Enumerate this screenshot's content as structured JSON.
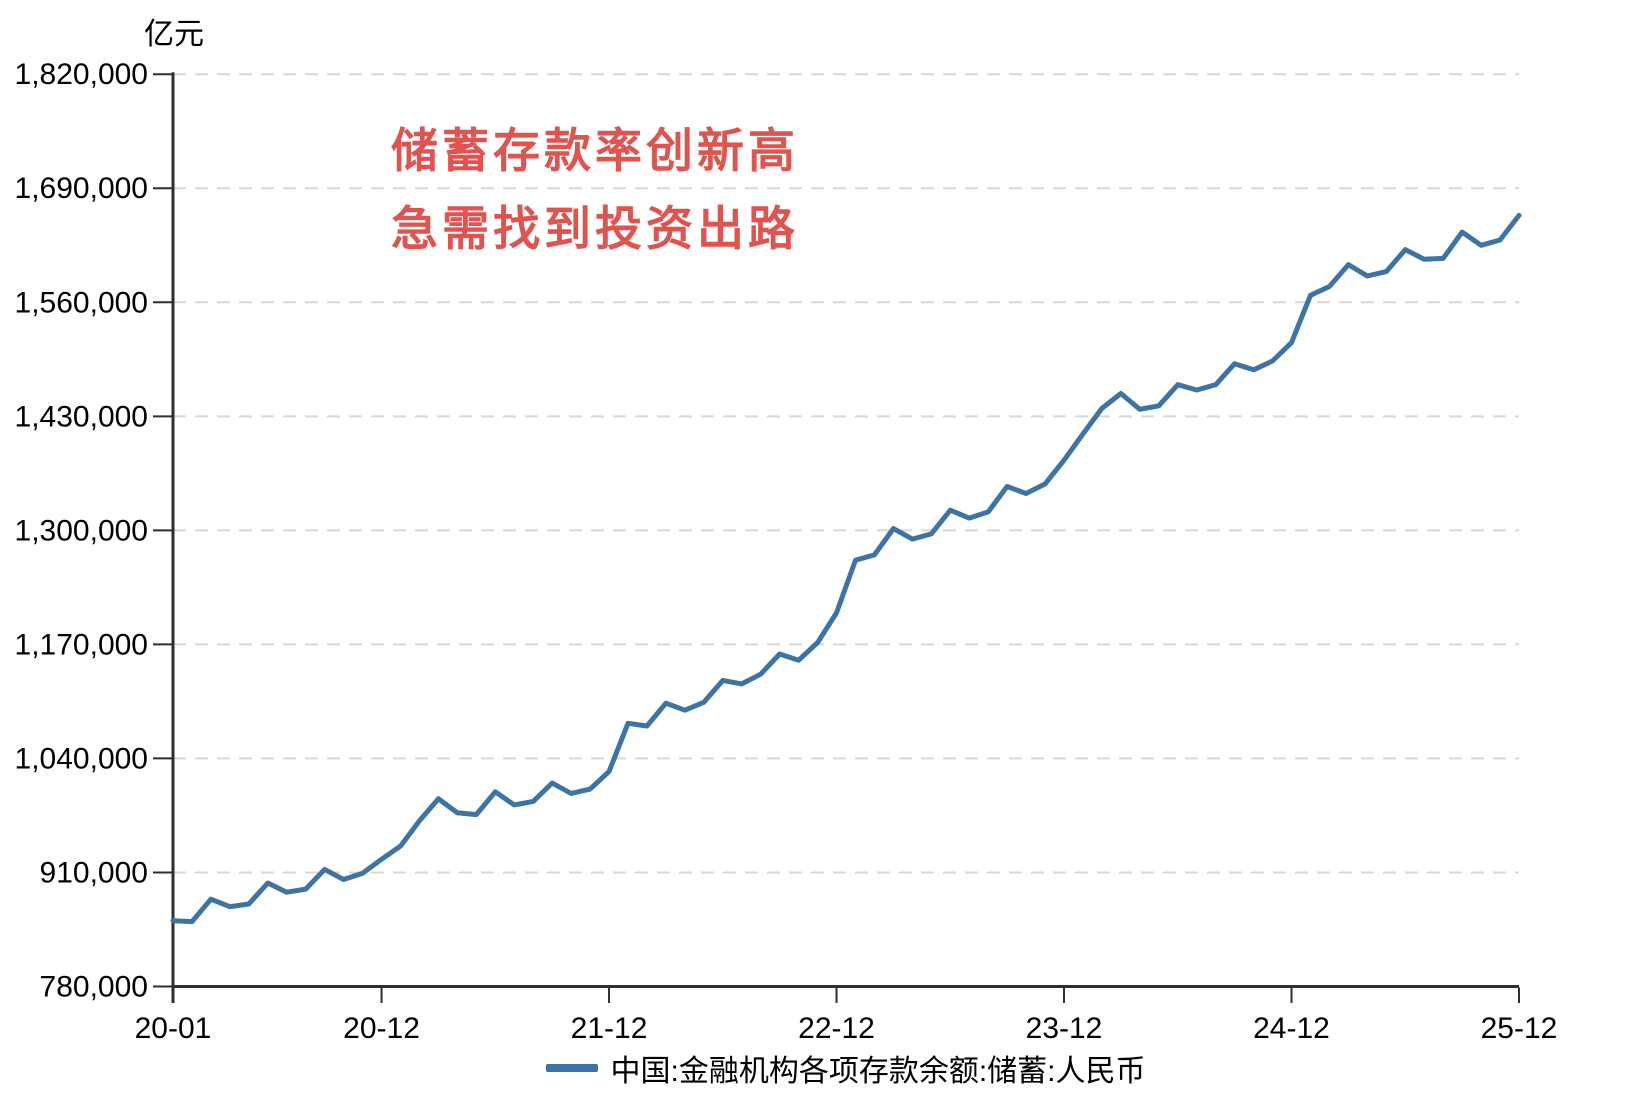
{
  "colors": {
    "line": "#3d74a5",
    "annotation": "#e0534f",
    "grid": "#d8d8d8",
    "axis": "#2f2f2f",
    "label": "#000000"
  },
  "annotation": {
    "line1": "储蓄存款率创新高",
    "line2": "急需找到投资出路"
  },
  "legend": {
    "label": "中国:金融机构各项存款余额:储蓄:人民币"
  },
  "y_axis": {
    "unit": "亿元"
  },
  "chart_data": {
    "type": "line",
    "title": "储蓄存款率创新高 急需找到投资出路",
    "ylabel": "亿元",
    "grid": "dashed-horizontal",
    "legend_position": "bottom-center",
    "ylim": [
      780000,
      1820000
    ],
    "yticks": [
      780000,
      910000,
      1040000,
      1170000,
      1300000,
      1430000,
      1560000,
      1690000,
      1820000
    ],
    "xtick_indices": [
      0,
      11,
      23,
      35,
      47,
      59,
      71
    ],
    "xtick_labels": [
      "20-01",
      "20-12",
      "21-12",
      "22-12",
      "23-12",
      "24-12",
      "25-12"
    ],
    "categories": [
      "20-01",
      "20-02",
      "20-03",
      "20-04",
      "20-05",
      "20-06",
      "20-07",
      "20-08",
      "20-09",
      "20-10",
      "20-11",
      "20-12",
      "21-01",
      "21-02",
      "21-03",
      "21-04",
      "21-05",
      "21-06",
      "21-07",
      "21-08",
      "21-09",
      "21-10",
      "21-11",
      "21-12",
      "22-01",
      "22-02",
      "22-03",
      "22-04",
      "22-05",
      "22-06",
      "22-07",
      "22-08",
      "22-09",
      "22-10",
      "22-11",
      "22-12",
      "23-01",
      "23-02",
      "23-03",
      "23-04",
      "23-05",
      "23-06",
      "23-07",
      "23-08",
      "23-09",
      "23-10",
      "23-11",
      "23-12",
      "24-01",
      "24-02",
      "24-03",
      "24-04",
      "24-05",
      "24-06",
      "24-07",
      "24-08",
      "24-09",
      "24-10",
      "24-11",
      "24-12",
      "25-01",
      "25-02",
      "25-03",
      "25-04",
      "25-05",
      "25-06",
      "25-07",
      "25-08",
      "25-09",
      "25-10",
      "25-11",
      "25-12"
    ],
    "series": [
      {
        "name": "中国:金融机构各项存款余额:储蓄:人民币",
        "color": "#3d74a5",
        "values": [
          855000,
          854000,
          879500,
          871000,
          874000,
          898000,
          887500,
          891000,
          913500,
          902000,
          909000,
          925000,
          940000,
          969000,
          994000,
          978000,
          976000,
          1002000,
          987000,
          991000,
          1012000,
          1000000,
          1005000,
          1025000,
          1080000,
          1077000,
          1103000,
          1095000,
          1104000,
          1129000,
          1125000,
          1136000,
          1159000,
          1152000,
          1172000,
          1206000,
          1266000,
          1272000,
          1302000,
          1290000,
          1296000,
          1323000,
          1314000,
          1321000,
          1350000,
          1342000,
          1353000,
          1380000,
          1410000,
          1439000,
          1456000,
          1438000,
          1442000,
          1466000,
          1460000,
          1466000,
          1490000,
          1483000,
          1493000,
          1514000,
          1568000,
          1578000,
          1603000,
          1590000,
          1595000,
          1620000,
          1609000,
          1610000,
          1640000,
          1625000,
          1631000,
          1659000
        ]
      }
    ]
  }
}
